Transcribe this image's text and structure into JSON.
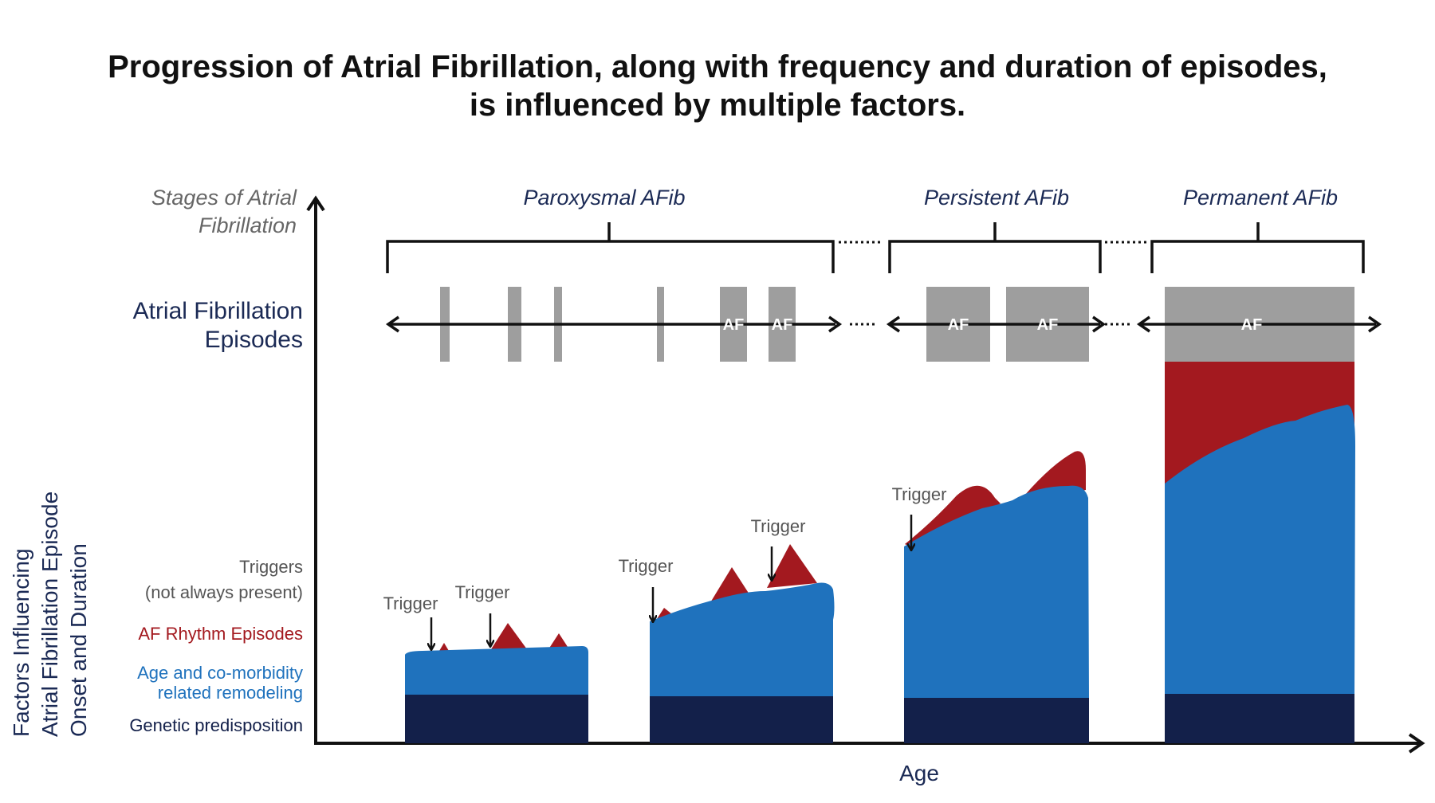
{
  "title": {
    "line1": "Progression of Atrial Fibrillation, along with frequency and duration of episodes,",
    "line2": "is influenced by multiple factors."
  },
  "left_labels": {
    "stages_line1": "Stages of Atrial",
    "stages_line2": "Fibrillation",
    "episodes_line1": "Atrial Fibrillation",
    "episodes_line2": "Episodes",
    "triggers_line1": "Triggers",
    "triggers_line2": "(not always present)",
    "af_rhythm": "AF Rhythm Episodes",
    "age_line1": "Age and co-morbidity",
    "age_line2": "related remodeling",
    "genetic": "Genetic predisposition"
  },
  "y_axis_label": {
    "line1": "Factors Influencing",
    "line2": "Atrial Fibrillation Episode",
    "line3": "Onset and Duration"
  },
  "x_axis_label": "Age",
  "stages": {
    "paroxysmal": "Paroxysmal AFib",
    "persistent": "Persistent AFib",
    "permanent": "Permanent AFib"
  },
  "episode_label": "AF",
  "trigger_label": "Trigger",
  "colors": {
    "genetic": "#13204a",
    "remodeling": "#1f72bd",
    "af_rhythm": "#a3191f",
    "episode": "#9e9e9e",
    "stage_text": "#1b2a55",
    "label_gray": "#555555",
    "axis": "#111111"
  }
}
